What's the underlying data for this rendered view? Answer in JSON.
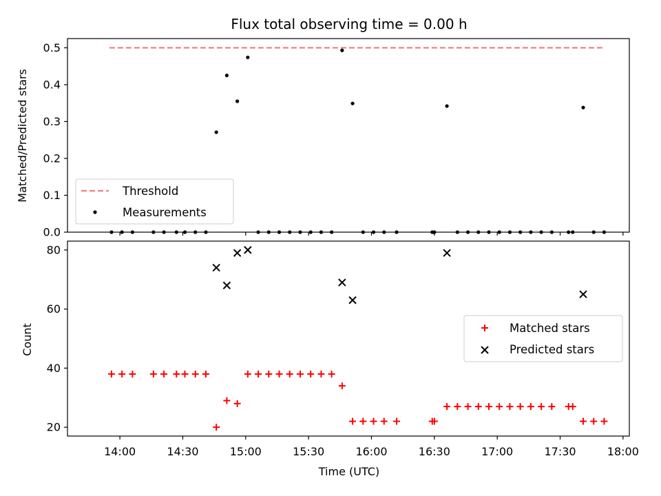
{
  "chart_data": [
    {
      "type": "line+scatter",
      "title": "Flux total observing time = 0.00 h",
      "xlabel": "",
      "ylabel": "Matched/Predicted stars",
      "ylim": [
        0,
        0.525
      ],
      "y_ticks": [
        "0.0",
        "0.1",
        "0.2",
        "0.3",
        "0.4",
        "0.5"
      ],
      "grid": false,
      "legend_position": "lower-left",
      "threshold": {
        "name": "Threshold",
        "value": 0.5,
        "x_start": "13:55",
        "x_end": "17:51",
        "color": "#f08080"
      },
      "series": [
        {
          "name": "Measurements",
          "color": "#000000",
          "points": [
            [
              "13:56",
              0
            ],
            [
              "14:01",
              0
            ],
            [
              "14:06",
              0
            ],
            [
              "14:16",
              0
            ],
            [
              "14:21",
              0
            ],
            [
              "14:27",
              0
            ],
            [
              "14:31",
              0
            ],
            [
              "14:36",
              0
            ],
            [
              "14:41",
              0
            ],
            [
              "14:46",
              0.271
            ],
            [
              "14:51",
              0.425
            ],
            [
              "14:56",
              0.355
            ],
            [
              "15:01",
              0.474
            ],
            [
              "15:06",
              0
            ],
            [
              "15:11",
              0
            ],
            [
              "15:16",
              0
            ],
            [
              "15:21",
              0
            ],
            [
              "15:26",
              0
            ],
            [
              "15:31",
              0
            ],
            [
              "15:36",
              0
            ],
            [
              "15:41",
              0
            ],
            [
              "15:46",
              0.493
            ],
            [
              "15:51",
              0.349
            ],
            [
              "15:56",
              0
            ],
            [
              "16:01",
              0
            ],
            [
              "16:06",
              0
            ],
            [
              "16:12",
              0
            ],
            [
              "16:29",
              0
            ],
            [
              "16:30",
              0
            ],
            [
              "16:36",
              0.342
            ],
            [
              "16:41",
              0
            ],
            [
              "16:46",
              0
            ],
            [
              "16:51",
              0
            ],
            [
              "16:56",
              0
            ],
            [
              "17:01",
              0
            ],
            [
              "17:06",
              0
            ],
            [
              "17:11",
              0
            ],
            [
              "17:16",
              0
            ],
            [
              "17:21",
              0
            ],
            [
              "17:26",
              0
            ],
            [
              "17:34",
              0
            ],
            [
              "17:36",
              0
            ],
            [
              "17:41",
              0.338
            ],
            [
              "17:46",
              0
            ],
            [
              "17:51",
              0
            ]
          ]
        }
      ]
    },
    {
      "type": "scatter",
      "title": "",
      "xlabel": "Time (UTC)",
      "ylabel": "Count",
      "ylim": [
        17,
        83
      ],
      "y_ticks": [
        "20",
        "40",
        "60",
        "80"
      ],
      "x_ticks": [
        "14:00",
        "14:30",
        "15:00",
        "15:30",
        "16:00",
        "16:30",
        "17:00",
        "17:30",
        "18:00"
      ],
      "grid": false,
      "legend_position": "center-right",
      "series": [
        {
          "name": "Matched stars",
          "color": "#ff0000",
          "marker": "plus",
          "points": [
            [
              "13:56",
              38
            ],
            [
              "14:01",
              38
            ],
            [
              "14:06",
              38
            ],
            [
              "14:16",
              38
            ],
            [
              "14:21",
              38
            ],
            [
              "14:27",
              38
            ],
            [
              "14:31",
              38
            ],
            [
              "14:36",
              38
            ],
            [
              "14:41",
              38
            ],
            [
              "14:46",
              20
            ],
            [
              "14:51",
              29
            ],
            [
              "14:56",
              28
            ],
            [
              "15:01",
              38
            ],
            [
              "15:06",
              38
            ],
            [
              "15:11",
              38
            ],
            [
              "15:16",
              38
            ],
            [
              "15:21",
              38
            ],
            [
              "15:26",
              38
            ],
            [
              "15:31",
              38
            ],
            [
              "15:36",
              38
            ],
            [
              "15:41",
              38
            ],
            [
              "15:46",
              34
            ],
            [
              "15:51",
              22
            ],
            [
              "15:56",
              22
            ],
            [
              "16:01",
              22
            ],
            [
              "16:06",
              22
            ],
            [
              "16:12",
              22
            ],
            [
              "16:29",
              22
            ],
            [
              "16:30",
              22
            ],
            [
              "16:36",
              27
            ],
            [
              "16:41",
              27
            ],
            [
              "16:46",
              27
            ],
            [
              "16:51",
              27
            ],
            [
              "16:56",
              27
            ],
            [
              "17:01",
              27
            ],
            [
              "17:06",
              27
            ],
            [
              "17:11",
              27
            ],
            [
              "17:16",
              27
            ],
            [
              "17:21",
              27
            ],
            [
              "17:26",
              27
            ],
            [
              "17:34",
              27
            ],
            [
              "17:36",
              27
            ],
            [
              "17:41",
              22
            ],
            [
              "17:46",
              22
            ],
            [
              "17:51",
              22
            ]
          ]
        },
        {
          "name": "Predicted stars",
          "color": "#000000",
          "marker": "x",
          "points": [
            [
              "14:46",
              74
            ],
            [
              "14:51",
              68
            ],
            [
              "14:56",
              79
            ],
            [
              "15:01",
              80
            ],
            [
              "15:46",
              69
            ],
            [
              "15:51",
              63
            ],
            [
              "16:36",
              79
            ],
            [
              "17:41",
              65
            ]
          ]
        }
      ]
    }
  ]
}
